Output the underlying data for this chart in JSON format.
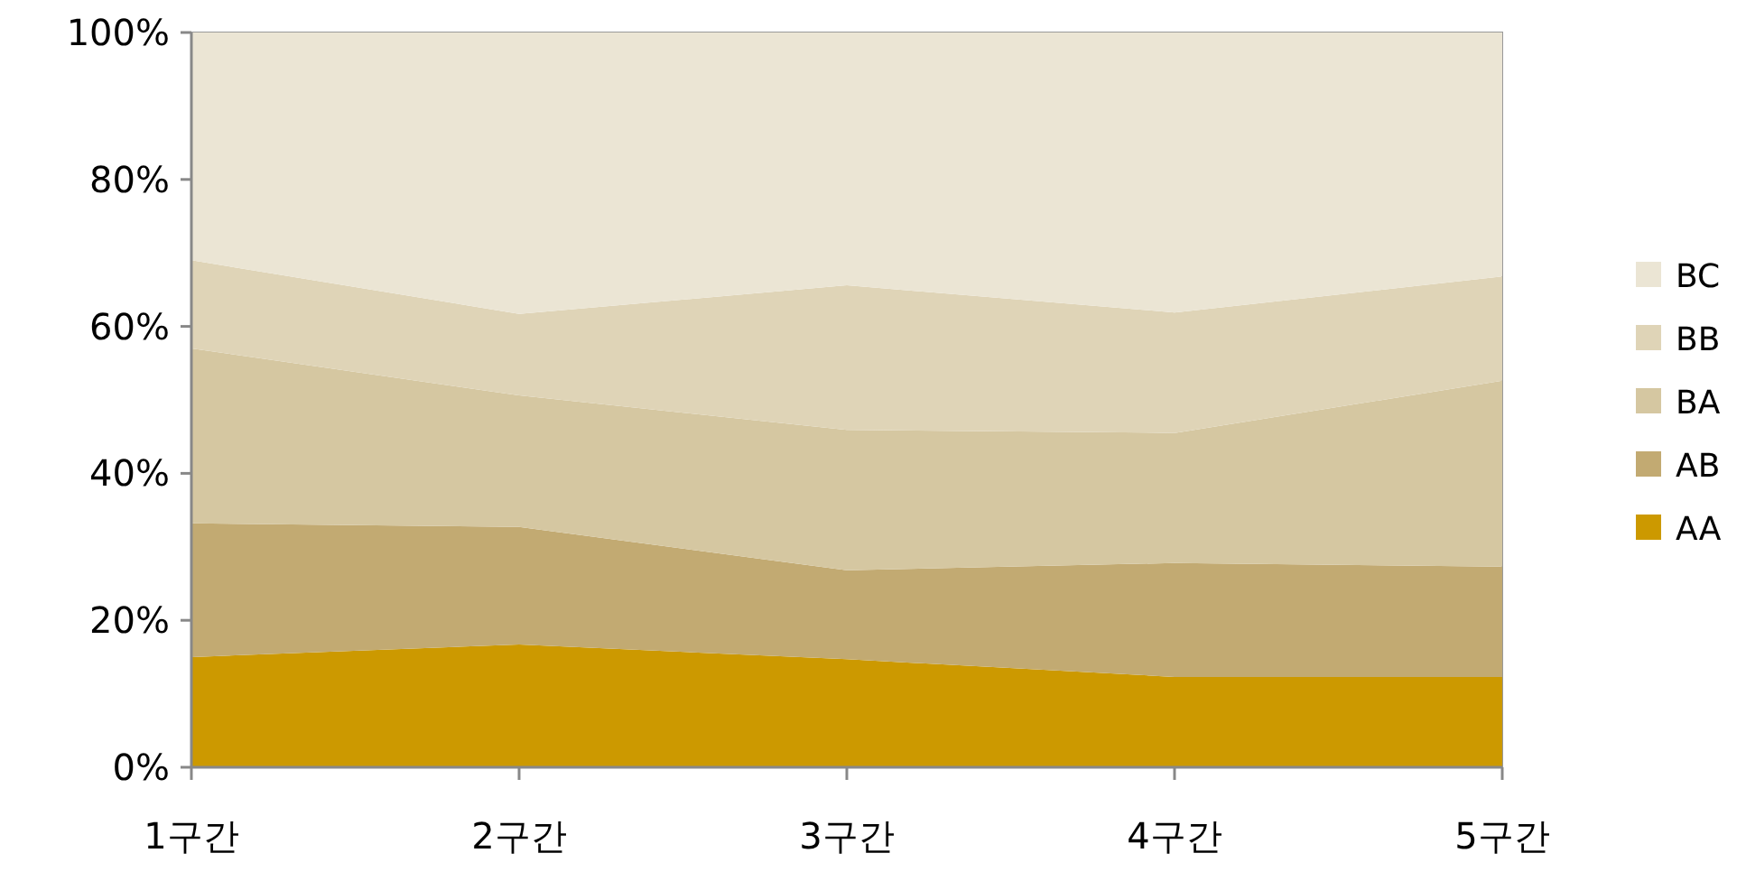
{
  "chart_data": {
    "type": "area",
    "stacked": true,
    "legend": "right",
    "categories": [
      "1구간",
      "2구간",
      "3구간",
      "4구간",
      "5구간"
    ],
    "ylim": [
      0,
      100
    ],
    "yticks": [
      {
        "value": 0,
        "label": "0%"
      },
      {
        "value": 20,
        "label": "20%"
      },
      {
        "value": 40,
        "label": "40%"
      },
      {
        "value": 60,
        "label": "60%"
      },
      {
        "value": 80,
        "label": "80%"
      },
      {
        "value": 100,
        "label": "100%"
      }
    ],
    "series": [
      {
        "name": "AA",
        "color": "#cc9900",
        "values": [
          15,
          16.7,
          14.7,
          12.3,
          12.3
        ]
      },
      {
        "name": "AB",
        "color": "#c2aa72",
        "values": [
          18.2,
          16,
          12.1,
          15.5,
          15
        ]
      },
      {
        "name": "BA",
        "color": "#d5c7a1",
        "values": [
          23.8,
          17.9,
          19.1,
          17.7,
          25.3
        ]
      },
      {
        "name": "BB",
        "color": "#dfd4b7",
        "values": [
          12,
          11.1,
          19.7,
          16.4,
          14.2
        ]
      },
      {
        "name": "BC",
        "color": "#ebe5d4",
        "values": [
          31,
          38.3,
          34.4,
          38.1,
          33.2
        ]
      }
    ]
  }
}
